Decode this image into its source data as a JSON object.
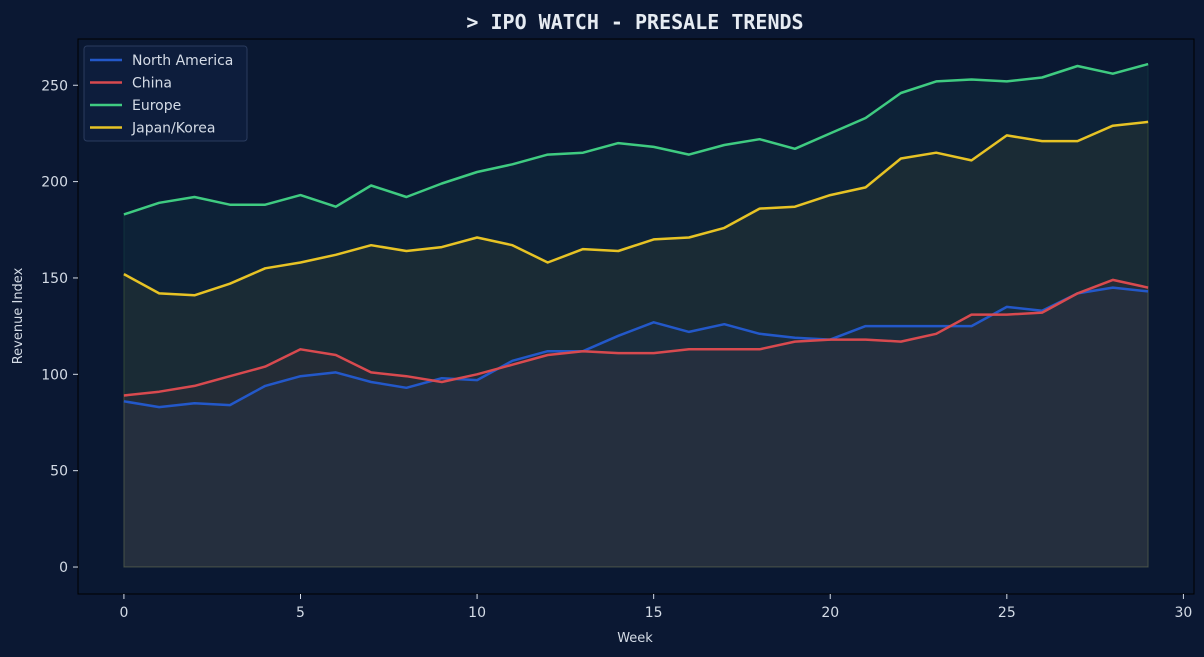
{
  "chart_data": {
    "type": "line",
    "title": "> IPO WATCH - PRESALE TRENDS",
    "xlabel": "Week",
    "ylabel": "Revenue Index",
    "xlim": [
      -1.3,
      30.3
    ],
    "ylim": [
      -14,
      274
    ],
    "xticks": [
      0,
      5,
      10,
      15,
      20,
      25,
      30
    ],
    "yticks": [
      0,
      50,
      100,
      150,
      200,
      250
    ],
    "grid": false,
    "legend_position": "top-left",
    "x": [
      0,
      1,
      2,
      3,
      4,
      5,
      6,
      7,
      8,
      9,
      10,
      11,
      12,
      13,
      14,
      15,
      16,
      17,
      18,
      19,
      20,
      21,
      22,
      23,
      24,
      25,
      26,
      27,
      28,
      29
    ],
    "series": [
      {
        "name": "North America",
        "color": "#2358c9",
        "values": [
          86,
          83,
          85,
          84,
          94,
          99,
          101,
          96,
          93,
          98,
          97,
          107,
          112,
          112,
          120,
          127,
          122,
          126,
          121,
          119,
          118,
          125,
          125,
          125,
          125,
          135,
          133,
          142,
          145,
          143
        ]
      },
      {
        "name": "China",
        "color": "#d84a4f",
        "values": [
          89,
          91,
          94,
          99,
          104,
          113,
          110,
          101,
          99,
          96,
          100,
          105,
          110,
          112,
          111,
          111,
          113,
          113,
          113,
          117,
          118,
          118,
          117,
          121,
          131,
          131,
          132,
          142,
          149,
          145
        ]
      },
      {
        "name": "Europe",
        "color": "#3fcb81",
        "values": [
          183,
          189,
          192,
          188,
          188,
          193,
          187,
          198,
          192,
          199,
          205,
          209,
          214,
          215,
          220,
          218,
          214,
          219,
          222,
          217,
          225,
          233,
          246,
          252,
          253,
          252,
          254,
          260,
          256,
          261
        ]
      },
      {
        "name": "Japan/Korea",
        "color": "#e7c325",
        "values": [
          152,
          142,
          141,
          147,
          155,
          158,
          162,
          167,
          164,
          166,
          171,
          167,
          158,
          165,
          164,
          170,
          171,
          176,
          186,
          187,
          193,
          197,
          212,
          215,
          211,
          224,
          221,
          221,
          229,
          231
        ]
      }
    ]
  }
}
